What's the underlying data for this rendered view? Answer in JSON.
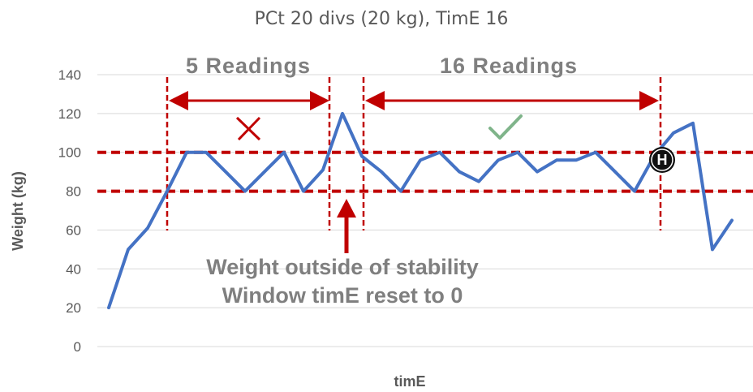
{
  "chart_data": {
    "type": "line",
    "title": "PCt 20 divs (20 kg), TimE 16",
    "xlabel": "timE",
    "ylabel": "Weight (kg)",
    "ylim": [
      0,
      140
    ],
    "yticks": [
      0,
      20,
      40,
      60,
      80,
      100,
      120,
      140
    ],
    "grid": true,
    "line_color": "#4472c4",
    "annotation_color": "#c00000",
    "series": [
      {
        "values": [
          20,
          50,
          61,
          80,
          100,
          100,
          90,
          80,
          90,
          100,
          80,
          91,
          120,
          98,
          90,
          80,
          96,
          100,
          90,
          85,
          96,
          100,
          90,
          96,
          96,
          100,
          90,
          80,
          98,
          110,
          115,
          50,
          65
        ]
      }
    ],
    "stability_band": [
      80,
      100
    ],
    "annotations": {
      "window1_label": "5 Readings",
      "window2_label": "16 Readings",
      "fail_mark": "✕",
      "pass_mark": "✓",
      "note_line1": "Weight outside of stability",
      "note_line2": "Window timE reset to 0",
      "marker_label": "H"
    }
  }
}
